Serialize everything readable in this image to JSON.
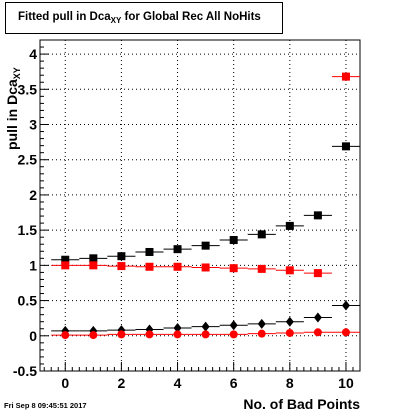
{
  "title": {
    "main": "Fitted pull in Dca",
    "sub": "XY",
    "rest": " for Global Rec All NoHits"
  },
  "ylabel": {
    "main": "pull in Dca",
    "sub": "XY"
  },
  "xlabel": "No. of Bad Points",
  "footer": "Fri Sep  8 09:45:51 2017",
  "chart_data": {
    "type": "scatter",
    "title": "Fitted pull in Dca_XY for Global Rec All NoHits",
    "xlabel": "No. of Bad Points",
    "ylabel": "pull in Dca_XY",
    "xlim": [
      -0.9,
      10.5
    ],
    "ylim": [
      -0.5,
      4.2
    ],
    "xticks": [
      0,
      2,
      4,
      6,
      8,
      10
    ],
    "yticks": [
      -0.5,
      0,
      0.5,
      1,
      1.5,
      2,
      2.5,
      3,
      3.5,
      4
    ],
    "grid": true,
    "colors": {
      "black": "#000000",
      "red": "#ff0000"
    },
    "series": [
      {
        "marker": "square",
        "color": "#000000",
        "x": [
          0,
          1,
          2,
          3,
          4,
          5,
          6,
          7,
          8,
          9,
          10
        ],
        "y": [
          1.08,
          1.1,
          1.13,
          1.19,
          1.23,
          1.28,
          1.36,
          1.44,
          1.56,
          1.71,
          2.69
        ]
      },
      {
        "marker": "square",
        "color": "#ff0000",
        "x": [
          0,
          1,
          2,
          3,
          4,
          5,
          6,
          7,
          8,
          9,
          10
        ],
        "y": [
          1.0,
          1.0,
          0.99,
          0.98,
          0.98,
          0.97,
          0.96,
          0.95,
          0.93,
          0.89,
          3.68
        ]
      },
      {
        "marker": "diamond",
        "color": "#000000",
        "x": [
          0,
          1,
          2,
          3,
          4,
          5,
          6,
          7,
          8,
          9,
          10
        ],
        "y": [
          0.07,
          0.07,
          0.08,
          0.09,
          0.11,
          0.13,
          0.15,
          0.17,
          0.2,
          0.26,
          0.43
        ]
      },
      {
        "marker": "circle",
        "color": "#ff0000",
        "x": [
          0,
          1,
          2,
          3,
          4,
          5,
          6,
          7,
          8,
          9,
          10
        ],
        "y": [
          0.01,
          0.01,
          0.02,
          0.02,
          0.02,
          0.02,
          0.02,
          0.03,
          0.04,
          0.05,
          0.05
        ]
      }
    ]
  }
}
